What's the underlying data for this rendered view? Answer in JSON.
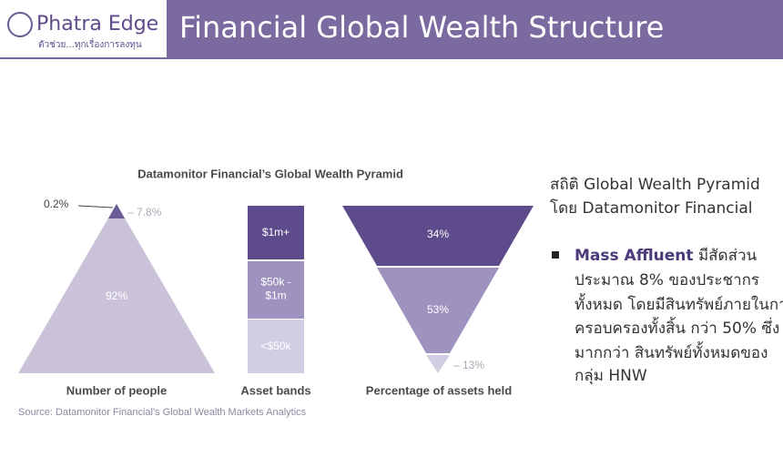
{
  "header": {
    "logo": "Phatra Edge",
    "tagline": "ตัวช่วย...ทุกเรื่องการลงทุน",
    "title": "Financial Global Wealth Structure"
  },
  "chart": {
    "title": "Datamonitor Financial’s Global Wealth Pyramid",
    "people": {
      "label": "Number of people",
      "top": "0.2%",
      "middle": "– 7.8%",
      "base": "92%"
    },
    "bands": {
      "label": "Asset bands",
      "items": [
        "$1m+",
        "$50k -\n$1m",
        "<$50k"
      ]
    },
    "assets": {
      "label": "Percentage of assets held",
      "top": "34%",
      "middle": "53%",
      "bottom": "– 13%"
    },
    "source": "Source: Datamonitor Financial's Global Wealth Markets Analytics"
  },
  "text": {
    "lines": [
      "สถิติ Global Wealth Pyramid",
      "โดย Datamonitor Financial"
    ],
    "bullet": {
      "bold": "Mass Affluent",
      "rest": " มีสัดส่วน",
      "lines": [
        "ประมาณ 8% ของประชากร",
        "ทั้งหมด โดยมีสินทรัพย์ภายในการ",
        "ครอบครองทั้งสิ้น กว่า 50% ซึ่ง",
        "มากกว่า สินทรัพย์ทั้งหมดของ",
        "กลุ่ม HNW"
      ]
    }
  }
}
